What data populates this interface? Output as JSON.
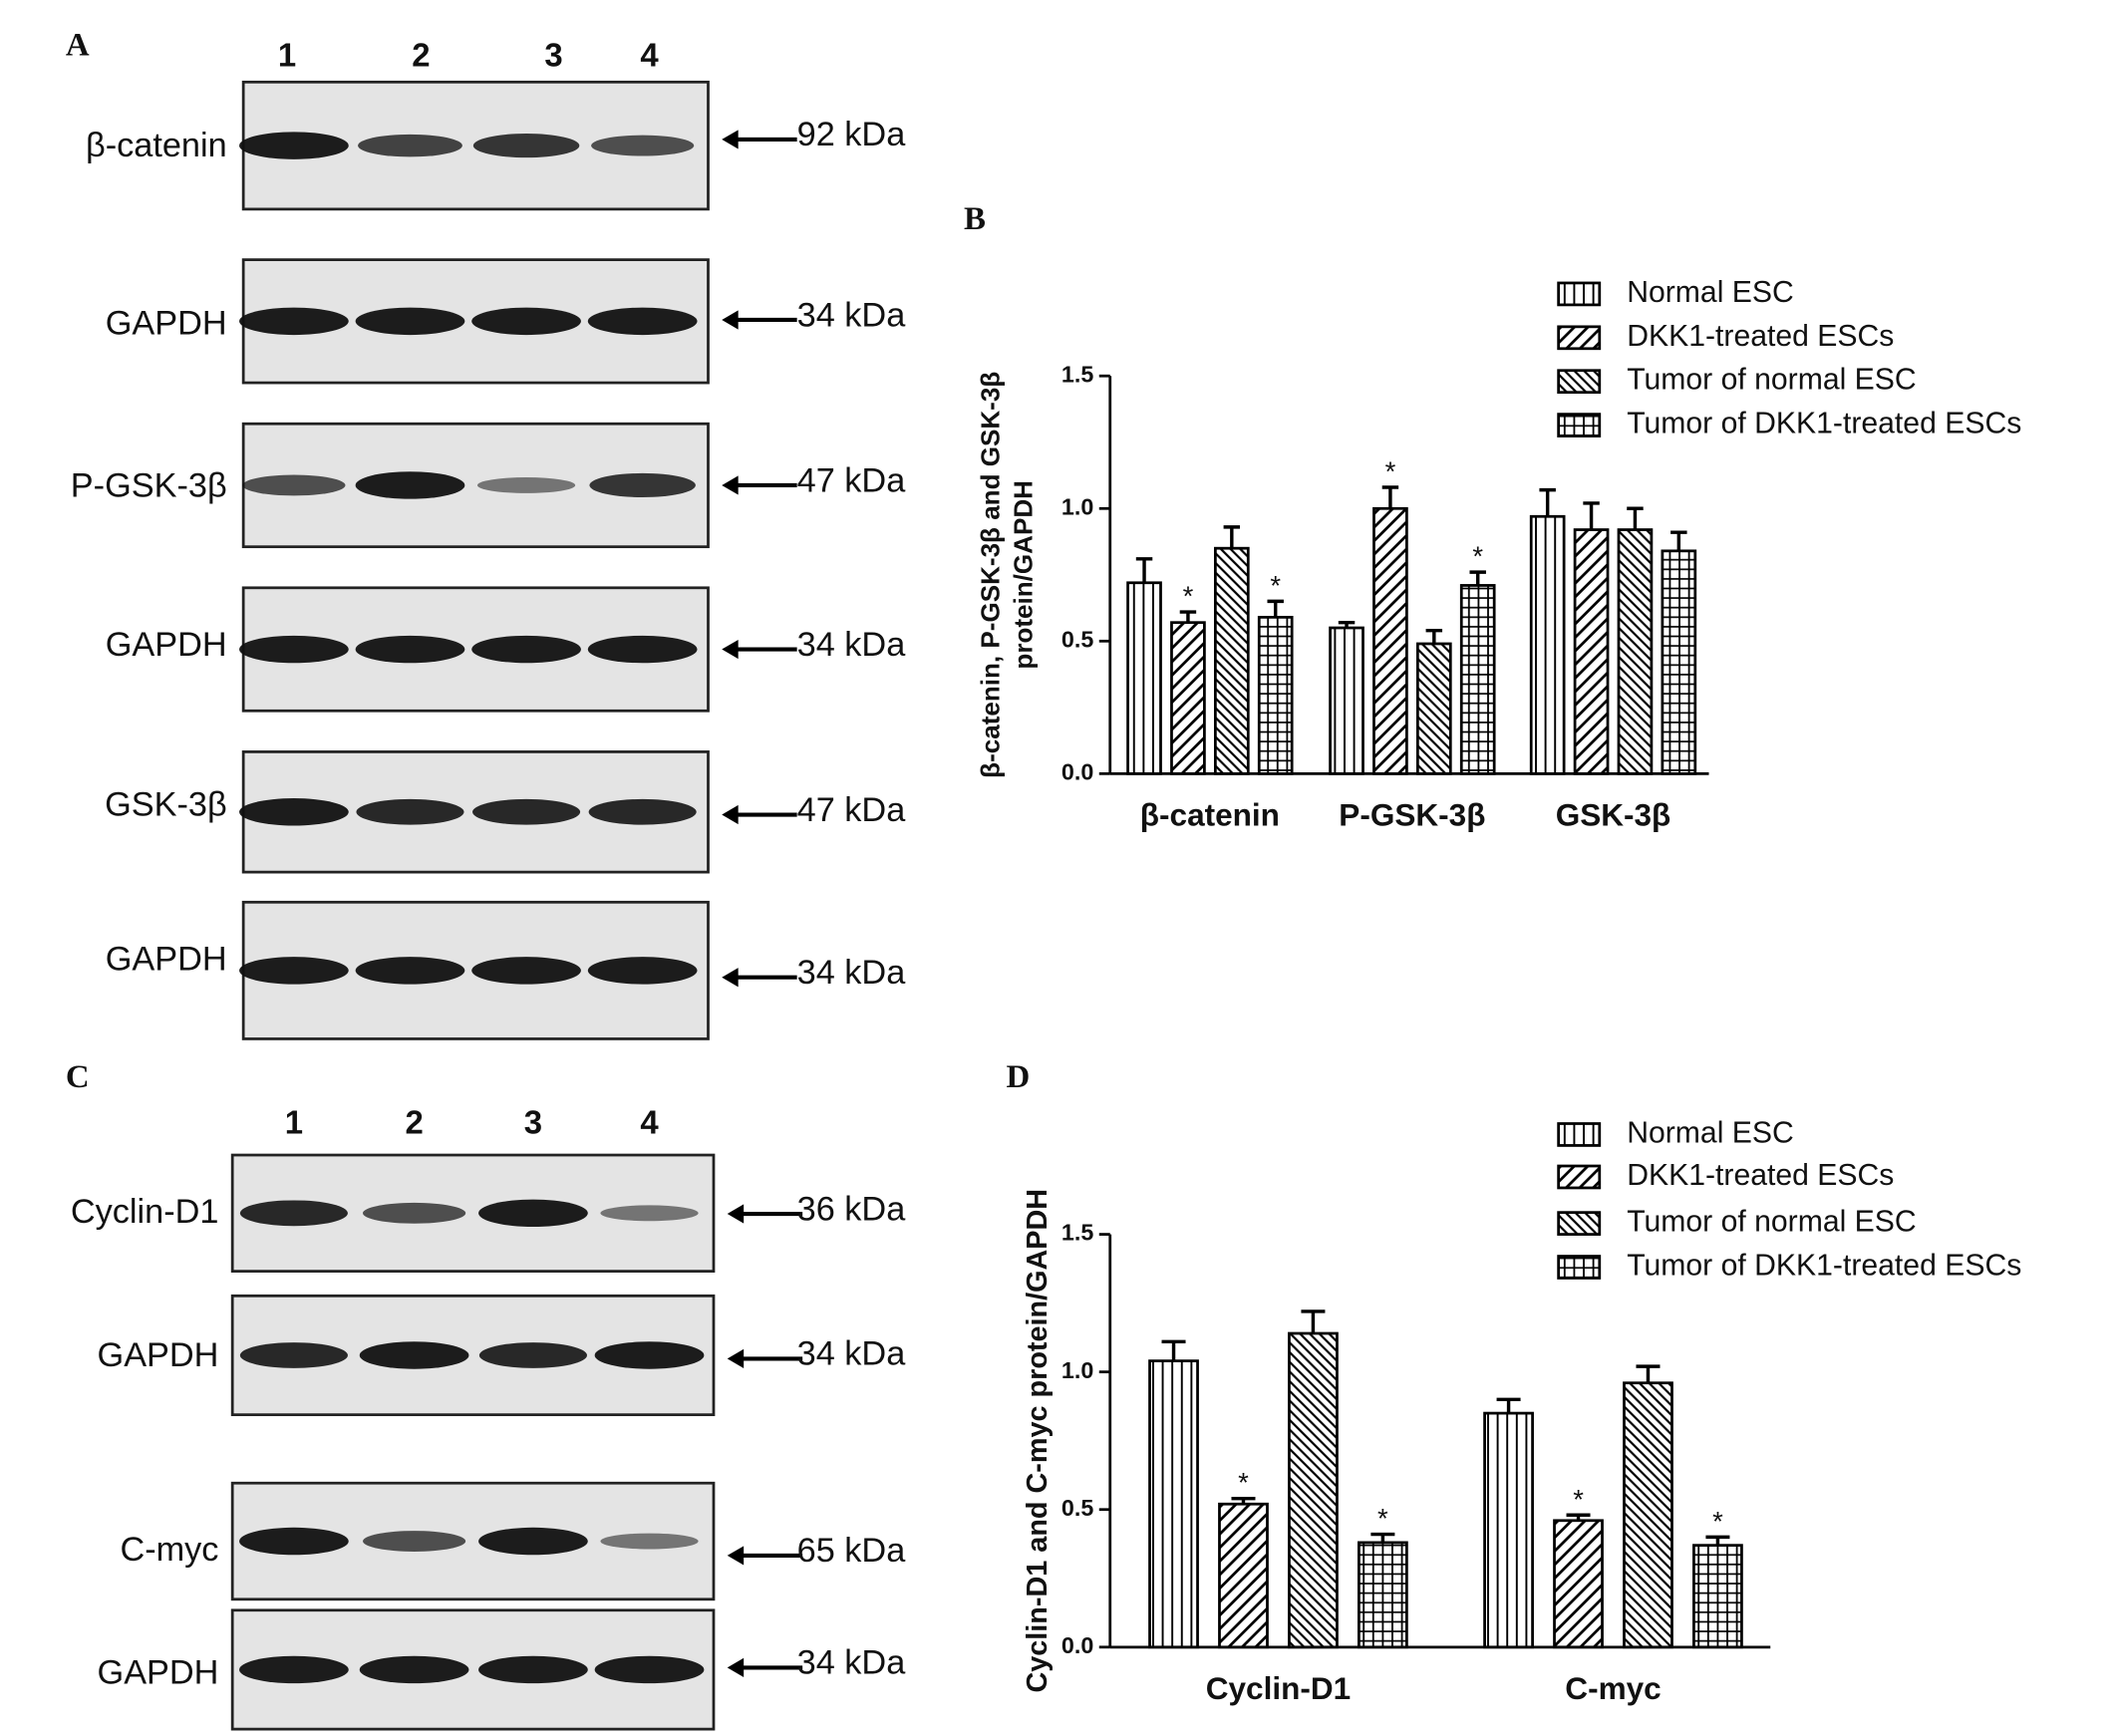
{
  "panel_labels": [
    "A",
    "B",
    "C",
    "D"
  ],
  "blot_A": {
    "lanes": [
      "1",
      "2",
      "3",
      "4"
    ],
    "rows": [
      {
        "label": "β-catenin",
        "size": "92 kDa"
      },
      {
        "label": "GAPDH",
        "size": "34 kDa"
      },
      {
        "label": "P-GSK-3β",
        "size": "47 kDa"
      },
      {
        "label": "GAPDH",
        "size": "34 kDa"
      },
      {
        "label": "GSK-3β",
        "size": "47 kDa"
      },
      {
        "label": "GAPDH",
        "size": "34 kDa"
      }
    ]
  },
  "blot_C": {
    "lanes": [
      "1",
      "2",
      "3",
      "4"
    ],
    "rows": [
      {
        "label": "Cyclin-D1",
        "size": "36 kDa"
      },
      {
        "label": "GAPDH",
        "size": "34 kDa"
      },
      {
        "label": "C-myc",
        "size": "65 kDa"
      },
      {
        "label": "GAPDH",
        "size": "34 kDa"
      }
    ]
  },
  "chart_data": [
    {
      "type": "bar",
      "ylabel": [
        "β-catenin, P-GSK-3β  and GSK-3β",
        "protein/GAPDH"
      ],
      "categories": [
        "β-catenin",
        "P-GSK-3β",
        "GSK-3β"
      ],
      "series": [
        {
          "name": "Normal ESC",
          "color": "#000000",
          "pattern": "vertical",
          "values": [
            0.72,
            0.55,
            0.97
          ],
          "errors": [
            0.09,
            0.02,
            0.1
          ],
          "annotations": [
            null,
            null,
            null
          ]
        },
        {
          "name": "DKK1-treated ESCs",
          "color": "#000000",
          "pattern": "diagonal",
          "values": [
            0.57,
            1.0,
            0.92
          ],
          "errors": [
            0.04,
            0.08,
            0.1
          ],
          "annotations": [
            "*",
            "*",
            null
          ]
        },
        {
          "name": "Tumor of normal ESC",
          "color": "#000000",
          "pattern": "antidiagonal",
          "values": [
            0.85,
            0.49,
            0.92
          ],
          "errors": [
            0.08,
            0.05,
            0.08
          ],
          "annotations": [
            null,
            null,
            null
          ]
        },
        {
          "name": "Tumor of DKK1-treated ESCs",
          "color": "#000000",
          "pattern": "grid",
          "values": [
            0.59,
            0.71,
            0.84
          ],
          "errors": [
            0.06,
            0.05,
            0.07
          ],
          "annotations": [
            "*",
            "*",
            null
          ]
        }
      ],
      "ylim": [
        0,
        1.5
      ],
      "yticks": [
        {
          "value": 0,
          "label": "0.0"
        },
        {
          "value": 0.5,
          "label": "0.5"
        },
        {
          "value": 1,
          "label": "1.0"
        },
        {
          "value": 1.5,
          "label": "1.5"
        }
      ]
    },
    {
      "type": "bar",
      "ylabel": [
        "Cyclin-D1 and C-myc protein/GAPDH"
      ],
      "categories": [
        "Cyclin-D1",
        "C-myc"
      ],
      "series": [
        {
          "name": "Normal ESC",
          "color": "#000000",
          "pattern": "vertical",
          "values": [
            1.04,
            0.85
          ],
          "errors": [
            0.07,
            0.05
          ],
          "annotations": [
            null,
            null
          ]
        },
        {
          "name": "DKK1-treated ESCs",
          "color": "#000000",
          "pattern": "diagonal",
          "values": [
            0.52,
            0.46
          ],
          "errors": [
            0.02,
            0.02
          ],
          "annotations": [
            "*",
            "*"
          ]
        },
        {
          "name": "Tumor of normal ESC",
          "color": "#000000",
          "pattern": "antidiagonal",
          "values": [
            1.14,
            0.96
          ],
          "errors": [
            0.08,
            0.06
          ],
          "annotations": [
            null,
            null
          ]
        },
        {
          "name": "Tumor of DKK1-treated ESCs",
          "color": "#000000",
          "pattern": "grid",
          "values": [
            0.38,
            0.37
          ],
          "errors": [
            0.03,
            0.03
          ],
          "annotations": [
            "*",
            "*"
          ]
        }
      ],
      "ylim": [
        0,
        1.5
      ],
      "yticks": [
        {
          "value": 0,
          "label": "0.0"
        },
        {
          "value": 0.5,
          "label": "0.5"
        },
        {
          "value": 1,
          "label": "1.0"
        },
        {
          "value": 1.5,
          "label": "1.5"
        }
      ]
    }
  ]
}
